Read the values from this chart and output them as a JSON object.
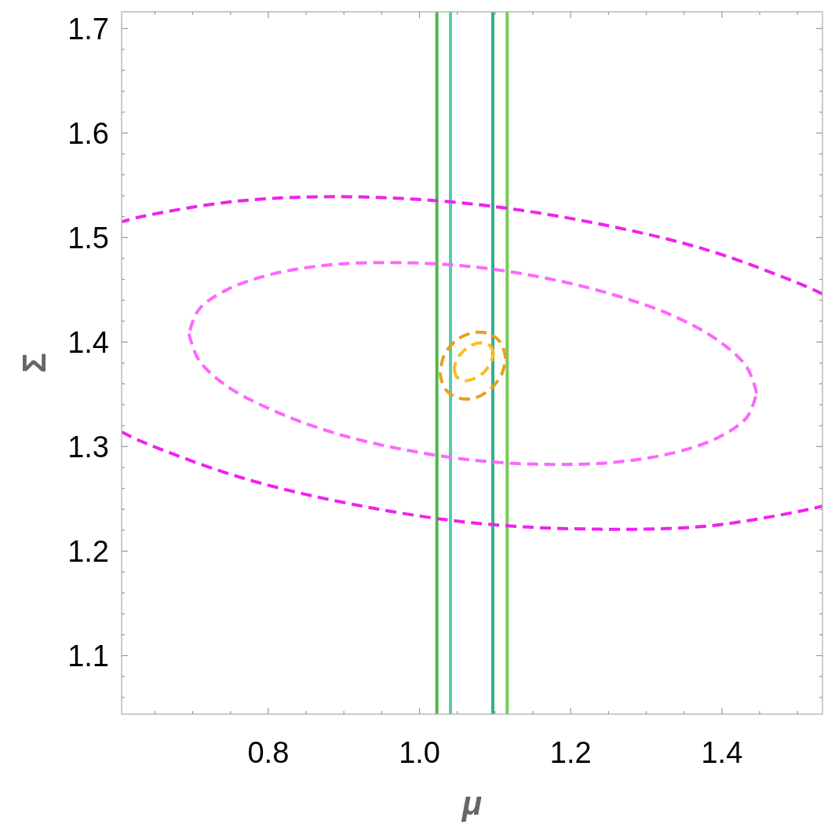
{
  "chart_data": {
    "type": "line",
    "xlabel": "μ",
    "ylabel": "Σ",
    "xlim": [
      0.606,
      1.533
    ],
    "ylim": [
      1.044,
      1.716
    ],
    "grid": false,
    "marker": "none",
    "xticks": [
      {
        "value": 0.65,
        "label": null
      },
      {
        "value": 0.7,
        "label": null
      },
      {
        "value": 0.75,
        "label": null
      },
      0.8,
      {
        "value": 0.85,
        "label": null
      },
      {
        "value": 0.9,
        "label": null
      },
      {
        "value": 0.95,
        "label": null
      },
      {
        "value": 1.0,
        "label": "1.0"
      },
      {
        "value": 1.05,
        "label": null
      },
      {
        "value": 1.1,
        "label": null
      },
      {
        "value": 1.15,
        "label": null
      },
      1.2,
      {
        "value": 1.25,
        "label": null
      },
      {
        "value": 1.3,
        "label": null
      },
      {
        "value": 1.35,
        "label": null
      },
      1.4,
      {
        "value": 1.45,
        "label": null
      },
      {
        "value": 1.5,
        "label": null
      }
    ],
    "yticks": [
      {
        "value": 1.06,
        "label": null
      },
      {
        "value": 1.08,
        "label": null
      },
      1.1,
      {
        "value": 1.12,
        "label": null
      },
      {
        "value": 1.14,
        "label": null
      },
      {
        "value": 1.16,
        "label": null
      },
      {
        "value": 1.18,
        "label": null
      },
      1.2,
      {
        "value": 1.22,
        "label": null
      },
      {
        "value": 1.24,
        "label": null
      },
      {
        "value": 1.26,
        "label": null
      },
      {
        "value": 1.28,
        "label": null
      },
      1.3,
      {
        "value": 1.32,
        "label": null
      },
      {
        "value": 1.34,
        "label": null
      },
      {
        "value": 1.36,
        "label": null
      },
      {
        "value": 1.38,
        "label": null
      },
      1.4,
      {
        "value": 1.42,
        "label": null
      },
      {
        "value": 1.44,
        "label": null
      },
      {
        "value": 1.46,
        "label": null
      },
      {
        "value": 1.48,
        "label": null
      },
      1.5,
      {
        "value": 1.52,
        "label": null
      },
      {
        "value": 1.54,
        "label": null
      },
      {
        "value": 1.56,
        "label": null
      },
      {
        "value": 1.58,
        "label": null
      },
      1.6,
      {
        "value": 1.62,
        "label": null
      },
      {
        "value": 1.64,
        "label": null
      },
      {
        "value": 1.66,
        "label": null
      },
      {
        "value": 1.68,
        "label": null
      },
      1.7
    ],
    "ref_lines": [
      {
        "axis": "x",
        "value": 1.023,
        "color": "#4cb84c"
      },
      {
        "axis": "x",
        "value": 1.041,
        "color": "#55ccaa"
      },
      {
        "axis": "x",
        "value": 1.097,
        "color": "#33b08a"
      },
      {
        "axis": "x",
        "value": 1.116,
        "color": "#77cc55"
      }
    ],
    "series": [
      {
        "color": "#ee22ee",
        "line_style": "dashed",
        "x": [
          1.533,
          1.509,
          1.381,
          1.231,
          1.071,
          0.91,
          0.761,
          0.632,
          0.606,
          null,
          0.606,
          0.632,
          0.761,
          0.91,
          1.071,
          1.231,
          1.381,
          1.509,
          1.533
        ],
        "values": [
          1.446,
          1.454,
          1.488,
          1.514,
          1.532,
          1.539,
          1.535,
          1.52,
          1.515,
          null,
          1.314,
          1.305,
          1.271,
          1.245,
          1.227,
          1.221,
          1.224,
          1.239,
          1.243
        ]
      },
      {
        "color": "#ff66ff",
        "line_style": "dashed",
        "x": [
          1.446,
          1.433,
          1.396,
          1.336,
          1.258,
          1.168,
          1.071,
          0.973,
          0.883,
          0.805,
          0.745,
          0.708,
          0.695,
          null,
          0.695,
          0.708,
          0.745,
          0.805,
          0.883,
          0.973,
          1.071,
          1.168,
          1.258,
          1.336,
          1.396,
          1.433,
          1.446
        ],
        "values": [
          1.351,
          1.376,
          1.401,
          1.425,
          1.445,
          1.461,
          1.472,
          1.476,
          1.474,
          1.465,
          1.45,
          1.431,
          1.408,
          null,
          1.408,
          1.383,
          1.358,
          1.335,
          1.314,
          1.298,
          1.287,
          1.283,
          1.285,
          1.294,
          1.309,
          1.328,
          1.351
        ]
      },
      {
        "color": "#e8a020",
        "line_style": "dashed",
        "x": [
          1.114,
          1.108,
          1.092,
          1.071,
          1.049,
          1.033,
          1.027,
          null,
          1.027,
          1.033,
          1.049,
          1.071,
          1.092,
          1.108,
          1.114
        ],
        "values": [
          1.384,
          1.399,
          1.408,
          1.409,
          1.402,
          1.388,
          1.371,
          null,
          1.371,
          1.356,
          1.347,
          1.346,
          1.354,
          1.368,
          1.384
        ]
      },
      {
        "color": "#ffbb22",
        "line_style": "dashed",
        "x": [
          1.098,
          1.094,
          1.085,
          1.072,
          1.059,
          1.049,
          1.046,
          null,
          1.046,
          1.049,
          1.059,
          1.072,
          1.085,
          1.094,
          1.098
        ],
        "values": [
          1.389,
          1.396,
          1.399,
          1.398,
          1.392,
          1.383,
          1.374,
          null,
          1.374,
          1.367,
          1.363,
          1.365,
          1.371,
          1.38,
          1.389
        ]
      }
    ]
  }
}
